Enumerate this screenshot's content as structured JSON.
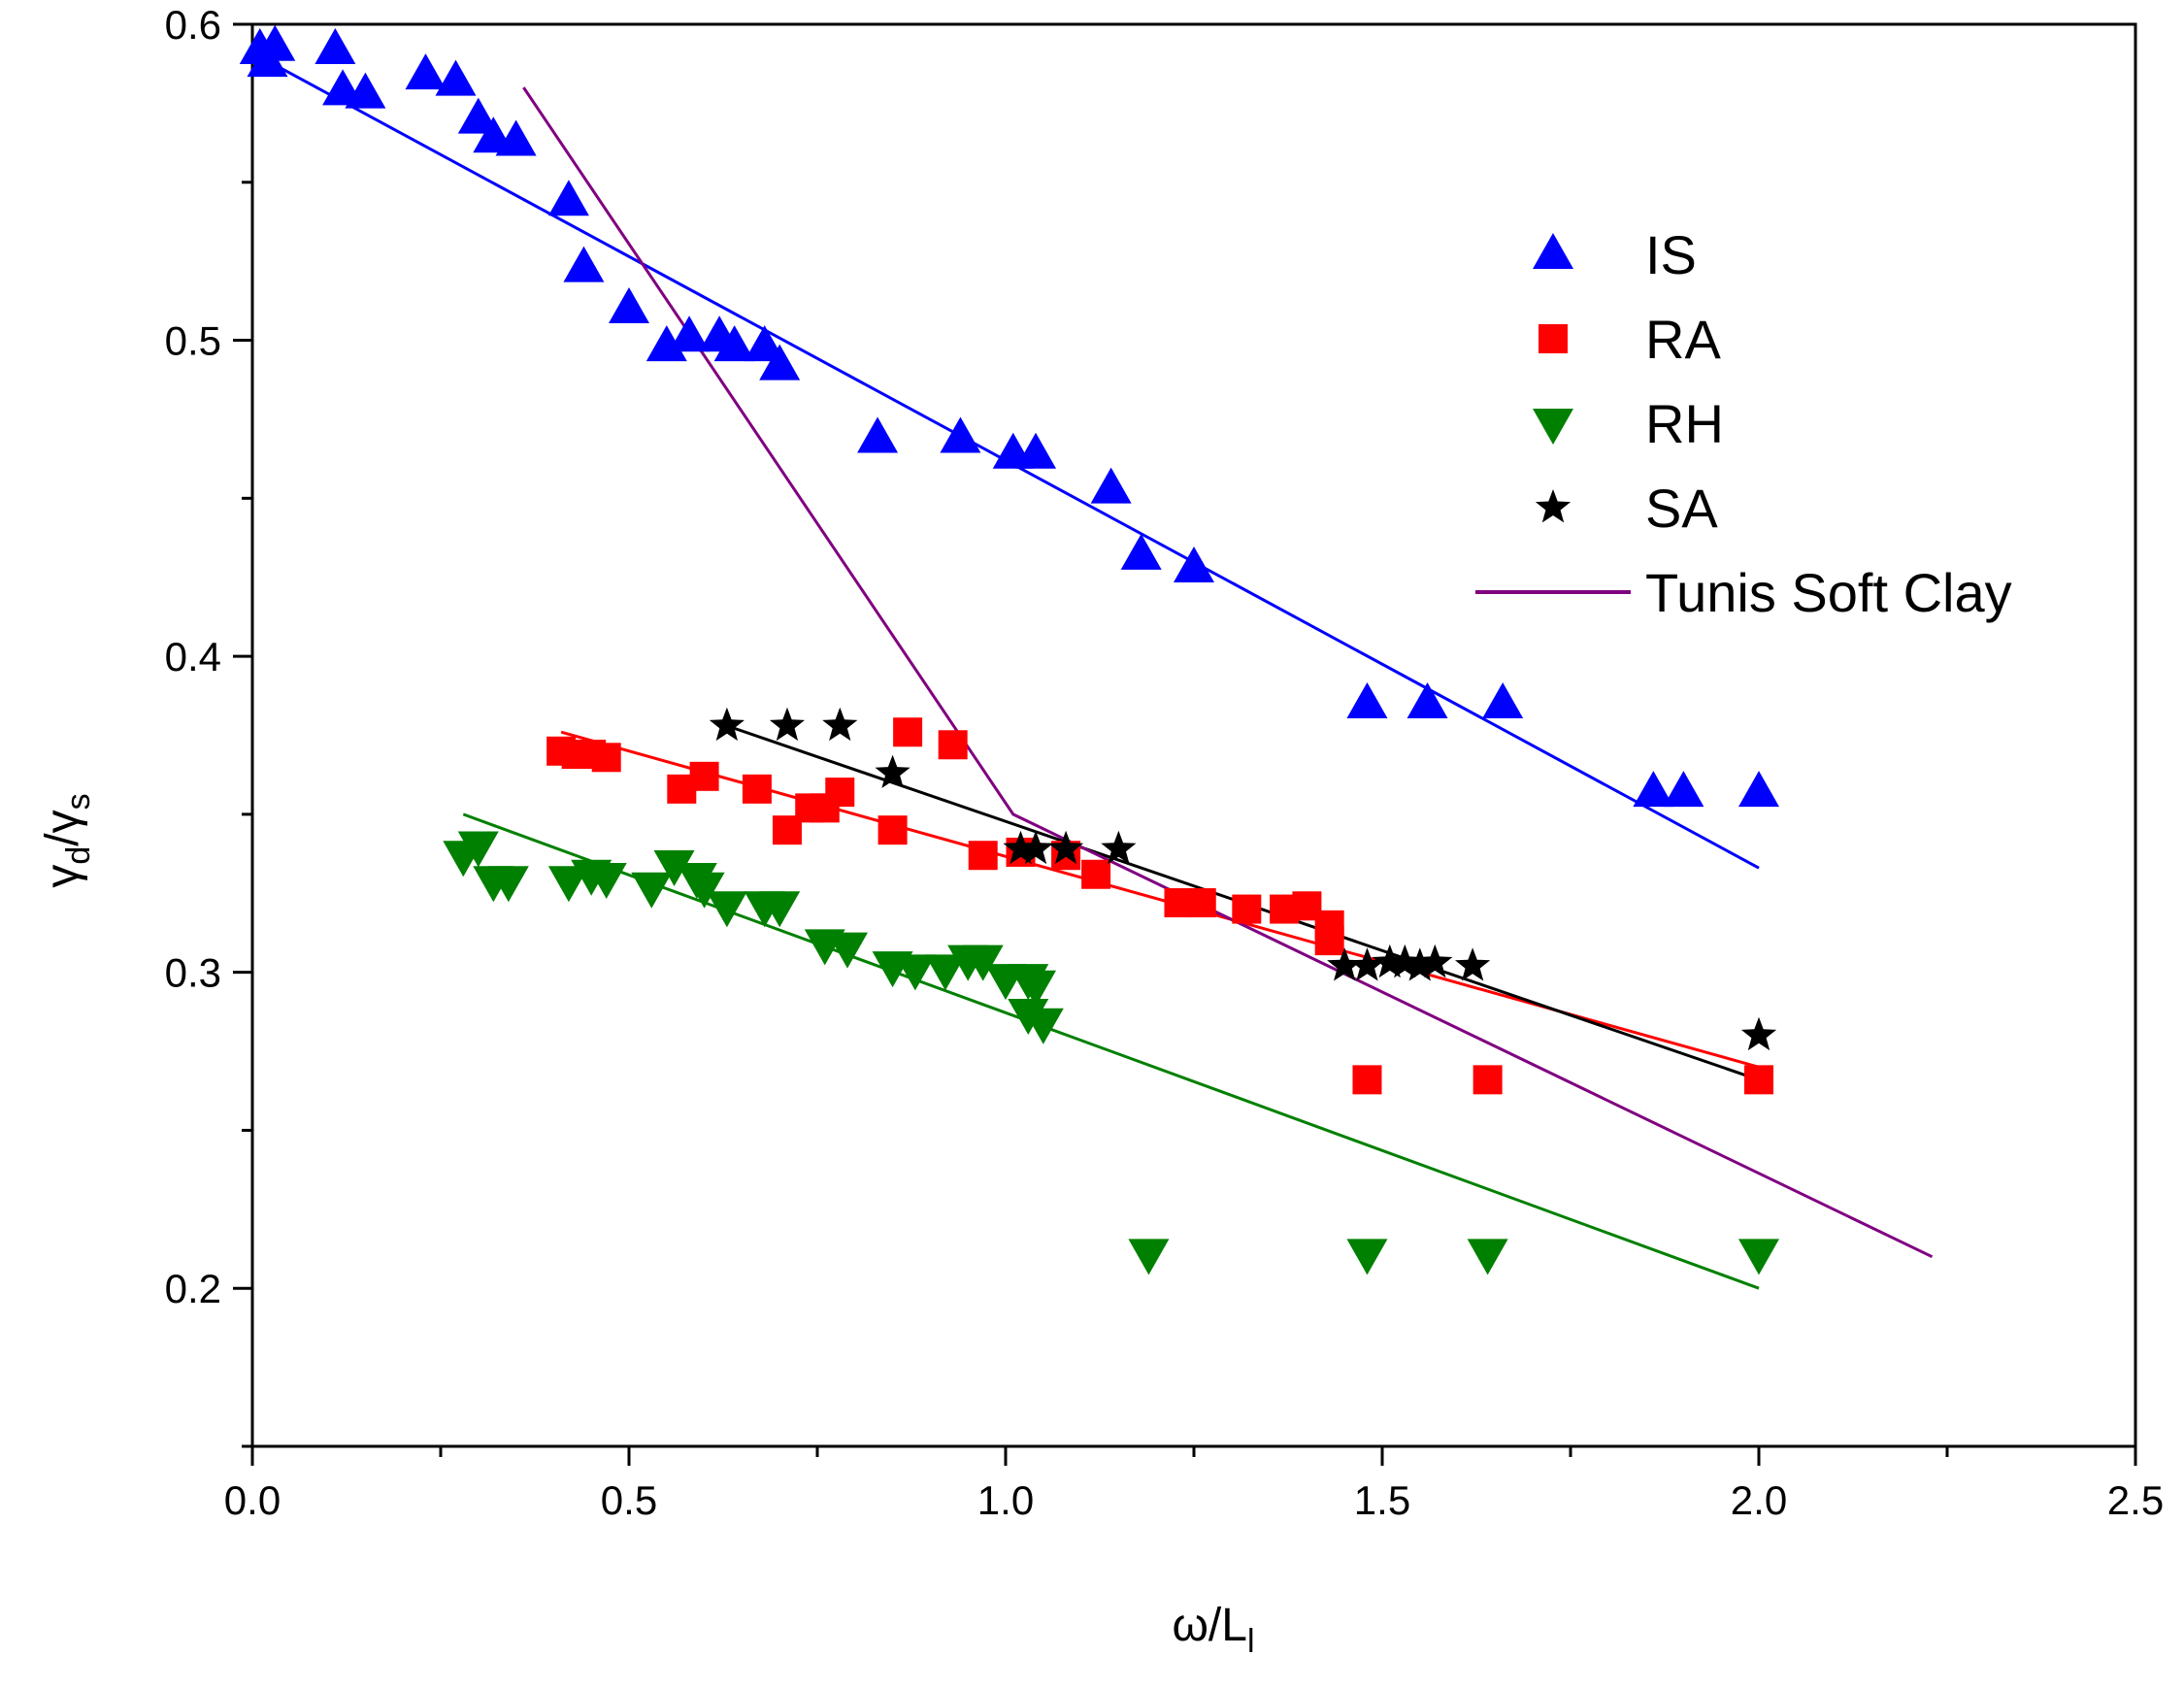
{
  "chart_data": {
    "type": "scatter",
    "title": "",
    "xlabel": {
      "base": "ω/L",
      "sub": "l"
    },
    "ylabel": {
      "g1": "γ",
      "s1": "d",
      "sep": "/",
      "g2": "γ",
      "s2": "s"
    },
    "xlim": [
      0.0,
      2.5
    ],
    "ylim": [
      0.15,
      0.6
    ],
    "x_ticks": [
      "0.0",
      "0.5",
      "1.0",
      "1.5",
      "2.0",
      "2.5"
    ],
    "x_tick_values": [
      0.0,
      0.5,
      1.0,
      1.5,
      2.0,
      2.5
    ],
    "y_ticks": [
      "0.2",
      "0.3",
      "0.4",
      "0.5",
      "0.6"
    ],
    "y_tick_values": [
      0.2,
      0.3,
      0.4,
      0.5,
      0.6
    ],
    "grid": false,
    "legend_position": "top-right",
    "series": [
      {
        "name": "IS",
        "marker": "triangle-up",
        "color": "#0000ff",
        "points": [
          [
            0.01,
            0.592
          ],
          [
            0.02,
            0.588
          ],
          [
            0.03,
            0.593
          ],
          [
            0.11,
            0.592
          ],
          [
            0.12,
            0.579
          ],
          [
            0.15,
            0.578
          ],
          [
            0.23,
            0.584
          ],
          [
            0.27,
            0.582
          ],
          [
            0.3,
            0.57
          ],
          [
            0.32,
            0.564
          ],
          [
            0.35,
            0.563
          ],
          [
            0.42,
            0.544
          ],
          [
            0.44,
            0.523
          ],
          [
            0.5,
            0.51
          ],
          [
            0.55,
            0.498
          ],
          [
            0.58,
            0.501
          ],
          [
            0.62,
            0.501
          ],
          [
            0.64,
            0.498
          ],
          [
            0.68,
            0.498
          ],
          [
            0.7,
            0.492
          ],
          [
            0.83,
            0.469
          ],
          [
            0.94,
            0.469
          ],
          [
            1.01,
            0.464
          ],
          [
            1.04,
            0.464
          ],
          [
            1.14,
            0.453
          ],
          [
            1.18,
            0.432
          ],
          [
            1.25,
            0.428
          ],
          [
            1.48,
            0.385
          ],
          [
            1.56,
            0.385
          ],
          [
            1.66,
            0.385
          ],
          [
            1.86,
            0.357
          ],
          [
            1.9,
            0.357
          ],
          [
            2.0,
            0.357
          ]
        ],
        "fit": [
          [
            0.0,
            0.591
          ],
          [
            2.0,
            0.333
          ]
        ]
      },
      {
        "name": "RA",
        "marker": "square",
        "color": "#ff0000",
        "points": [
          [
            0.41,
            0.37
          ],
          [
            0.43,
            0.369
          ],
          [
            0.45,
            0.369
          ],
          [
            0.47,
            0.368
          ],
          [
            0.57,
            0.358
          ],
          [
            0.6,
            0.362
          ],
          [
            0.67,
            0.358
          ],
          [
            0.71,
            0.345
          ],
          [
            0.74,
            0.352
          ],
          [
            0.76,
            0.352
          ],
          [
            0.78,
            0.357
          ],
          [
            0.85,
            0.345
          ],
          [
            0.87,
            0.376
          ],
          [
            0.93,
            0.372
          ],
          [
            0.97,
            0.337
          ],
          [
            1.02,
            0.338
          ],
          [
            1.08,
            0.337
          ],
          [
            1.12,
            0.331
          ],
          [
            1.23,
            0.322
          ],
          [
            1.26,
            0.322
          ],
          [
            1.32,
            0.32
          ],
          [
            1.37,
            0.32
          ],
          [
            1.4,
            0.321
          ],
          [
            1.43,
            0.315
          ],
          [
            1.43,
            0.31
          ],
          [
            1.48,
            0.266
          ],
          [
            1.64,
            0.266
          ],
          [
            2.0,
            0.266
          ]
        ],
        "fit": [
          [
            0.41,
            0.376
          ],
          [
            2.0,
            0.27
          ]
        ]
      },
      {
        "name": "RH",
        "marker": "triangle-down",
        "color": "#008000",
        "points": [
          [
            0.28,
            0.337
          ],
          [
            0.3,
            0.34
          ],
          [
            0.32,
            0.329
          ],
          [
            0.34,
            0.329
          ],
          [
            0.42,
            0.329
          ],
          [
            0.45,
            0.331
          ],
          [
            0.47,
            0.33
          ],
          [
            0.53,
            0.327
          ],
          [
            0.56,
            0.334
          ],
          [
            0.59,
            0.33
          ],
          [
            0.6,
            0.327
          ],
          [
            0.63,
            0.321
          ],
          [
            0.68,
            0.321
          ],
          [
            0.7,
            0.321
          ],
          [
            0.76,
            0.309
          ],
          [
            0.79,
            0.308
          ],
          [
            0.85,
            0.302
          ],
          [
            0.88,
            0.301
          ],
          [
            0.92,
            0.301
          ],
          [
            0.95,
            0.304
          ],
          [
            0.97,
            0.304
          ],
          [
            1.0,
            0.298
          ],
          [
            1.03,
            0.298
          ],
          [
            1.04,
            0.296
          ],
          [
            1.03,
            0.287
          ],
          [
            1.05,
            0.284
          ],
          [
            1.19,
            0.211
          ],
          [
            1.48,
            0.211
          ],
          [
            1.64,
            0.211
          ],
          [
            2.0,
            0.211
          ]
        ],
        "fit": [
          [
            0.28,
            0.35
          ],
          [
            2.0,
            0.2
          ]
        ]
      },
      {
        "name": "SA",
        "marker": "star",
        "color": "#000000",
        "points": [
          [
            0.63,
            0.378
          ],
          [
            0.71,
            0.378
          ],
          [
            0.78,
            0.378
          ],
          [
            0.85,
            0.363
          ],
          [
            1.02,
            0.339
          ],
          [
            1.04,
            0.339
          ],
          [
            1.08,
            0.339
          ],
          [
            1.15,
            0.339
          ],
          [
            1.45,
            0.302
          ],
          [
            1.48,
            0.302
          ],
          [
            1.51,
            0.303
          ],
          [
            1.53,
            0.303
          ],
          [
            1.55,
            0.302
          ],
          [
            1.57,
            0.303
          ],
          [
            1.62,
            0.302
          ],
          [
            2.0,
            0.28
          ]
        ],
        "fit": [
          [
            0.63,
            0.378
          ],
          [
            2.0,
            0.266
          ]
        ]
      },
      {
        "name": "Tunis Soft Clay",
        "marker": "line",
        "color": "#800080",
        "line": [
          [
            0.36,
            0.58
          ],
          [
            1.01,
            0.35
          ],
          [
            2.23,
            0.21
          ]
        ]
      }
    ]
  }
}
